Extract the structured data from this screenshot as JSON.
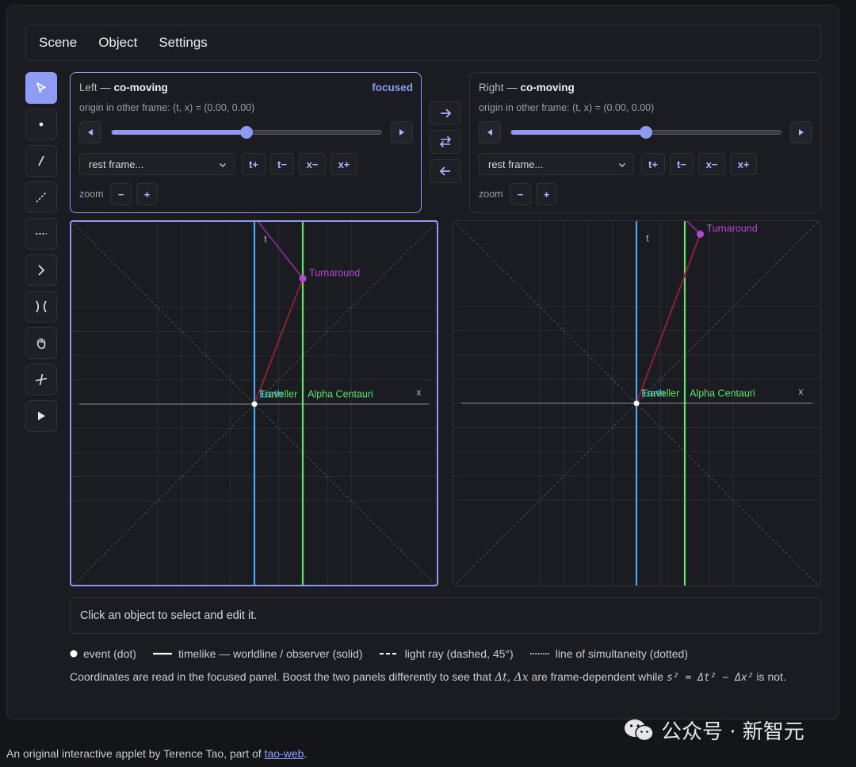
{
  "menu": {
    "items": [
      "Scene",
      "Object",
      "Settings"
    ]
  },
  "toolbar": {
    "tools": [
      "select",
      "event",
      "worldline",
      "light-ray",
      "simultaneity",
      "cone",
      "hyperbola",
      "pan",
      "axes",
      "play"
    ]
  },
  "panels": {
    "left": {
      "side": "Left",
      "frame": "co-moving",
      "focused_label": "focused",
      "origin_text": "origin in other frame: (t, x) = (0.00, 0.00)",
      "slider_value": 0.5,
      "select_value": "rest frame...",
      "buttons": [
        "t+",
        "t−",
        "x−",
        "x+"
      ],
      "zoom_label": "zoom",
      "zoom_minus": "−",
      "zoom_plus": "+"
    },
    "right": {
      "side": "Right",
      "frame": "co-moving",
      "origin_text": "origin in other frame: (t, x) = (0.00, 0.00)",
      "slider_value": 0.5,
      "select_value": "rest frame...",
      "buttons": [
        "t+",
        "t−",
        "x−",
        "x+"
      ],
      "zoom_label": "zoom",
      "zoom_minus": "−",
      "zoom_plus": "+"
    }
  },
  "middle_buttons": [
    "→",
    "⇄",
    "←"
  ],
  "diagram": {
    "t_axis_label": "t",
    "x_axis_label": "x",
    "labels": {
      "earth": "Earth",
      "traveller": "Traveller",
      "alpha": "Alpha Centauri",
      "turnaround": "Turnaround"
    },
    "colors": {
      "earth": "#4da6f2",
      "alpha": "#62e06a",
      "traveller_out": "#8c1f38",
      "traveller_back": "#7b2b86",
      "turnaround": "#b44ad0",
      "grid": "#2b2d34",
      "axis": "#8e9099",
      "light": "#4c4f57"
    },
    "left": {
      "turnaround": {
        "t": 2.6,
        "x": 1.25
      }
    },
    "right": {
      "turnaround": {
        "t": 3.5,
        "x": 1.65
      }
    }
  },
  "status": {
    "text": "Click an object to select and edit it."
  },
  "legend": {
    "event": "event (dot)",
    "timelike": "timelike — worldline / observer (solid)",
    "light": "light ray (dashed, 45°)",
    "simultaneity": "line of simultaneity (dotted)"
  },
  "explain": {
    "before": "Coordinates are read in the focused panel. Boost the two panels differently to see that",
    "dt_dx": "Δt, Δx",
    "middle": "are frame-dependent while",
    "formula": "s² = Δt² − Δx²",
    "after": "is not."
  },
  "credit": {
    "before": "An original interactive applet by Terence Tao, part of",
    "link": "tao-web",
    "after": "."
  },
  "watermark": {
    "text": "公众号 · 新智元"
  }
}
